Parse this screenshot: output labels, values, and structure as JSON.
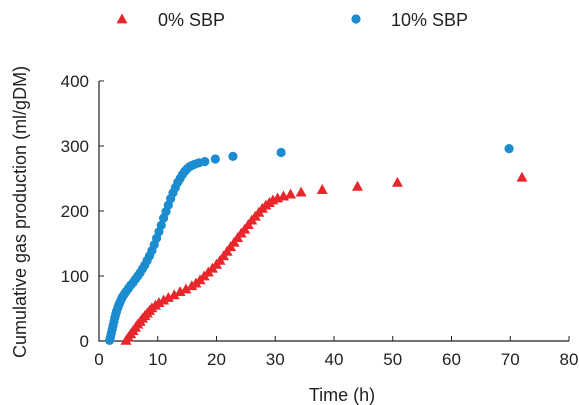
{
  "chart_data": {
    "type": "scatter",
    "title": "",
    "xlabel": "Time (h)",
    "ylabel": "Cumulative gas production (ml/gDM)",
    "xlim": [
      0,
      80
    ],
    "ylim": [
      0,
      400
    ],
    "xticks": [
      "0",
      "10",
      "20",
      "30",
      "40",
      "50",
      "60",
      "70",
      "80"
    ],
    "yticks": [
      "0",
      "100",
      "200",
      "300",
      "400"
    ],
    "grid": false,
    "legend_position": "top",
    "series": [
      {
        "name": "0% SBP",
        "marker": "triangle",
        "color": "#e8262b",
        "x": [
          4.6,
          5.0,
          5.4,
          5.8,
          6.2,
          6.6,
          7.0,
          7.4,
          7.8,
          8.2,
          8.6,
          9.0,
          9.6,
          10.2,
          11.0,
          11.8,
          12.8,
          13.8,
          14.8,
          15.8,
          16.5,
          17.2,
          17.9,
          18.6,
          19.3,
          20.0,
          20.6,
          21.2,
          21.8,
          22.4,
          23.0,
          23.6,
          24.2,
          24.8,
          25.4,
          26.0,
          26.6,
          27.2,
          27.8,
          28.4,
          29.0,
          29.6,
          30.4,
          31.4,
          32.6,
          34.4,
          38.0,
          44.0,
          50.8,
          72.0
        ],
        "y": [
          1,
          6,
          11,
          16,
          21,
          26,
          30,
          35,
          39,
          43,
          47,
          51,
          55,
          59,
          63,
          67,
          71,
          76,
          80,
          85,
          89,
          94,
          100,
          106,
          112,
          118,
          124,
          131,
          138,
          145,
          152,
          159,
          166,
          172,
          179,
          186,
          192,
          198,
          204,
          209,
          213,
          217,
          220,
          223,
          226,
          229,
          233,
          238,
          244,
          252
        ]
      },
      {
        "name": "10% SBP",
        "marker": "circle",
        "color": "#1a8ccf",
        "x": [
          1.8,
          1.95,
          2.1,
          2.25,
          2.4,
          2.55,
          2.7,
          2.85,
          3.0,
          3.2,
          3.4,
          3.6,
          3.8,
          4.0,
          4.3,
          4.6,
          5.0,
          5.4,
          5.8,
          6.2,
          6.6,
          7.0,
          7.4,
          7.8,
          8.2,
          8.6,
          9.0,
          9.4,
          9.8,
          10.2,
          10.6,
          11.0,
          11.4,
          11.8,
          12.2,
          12.6,
          13.0,
          13.4,
          13.8,
          14.2,
          14.6,
          15.0,
          15.4,
          15.8,
          16.3,
          17.0,
          18.0,
          19.8,
          22.8,
          31.0,
          69.8
        ],
        "y": [
          1,
          6,
          12,
          18,
          24,
          30,
          36,
          41,
          46,
          51,
          56,
          60,
          64,
          68,
          72,
          76,
          81,
          86,
          90,
          95,
          100,
          105,
          111,
          117,
          124,
          131,
          139,
          148,
          158,
          168,
          178,
          189,
          199,
          209,
          219,
          228,
          236,
          244,
          250,
          256,
          261,
          265,
          268,
          270,
          272,
          274,
          276,
          280,
          284,
          290,
          296
        ]
      }
    ]
  }
}
